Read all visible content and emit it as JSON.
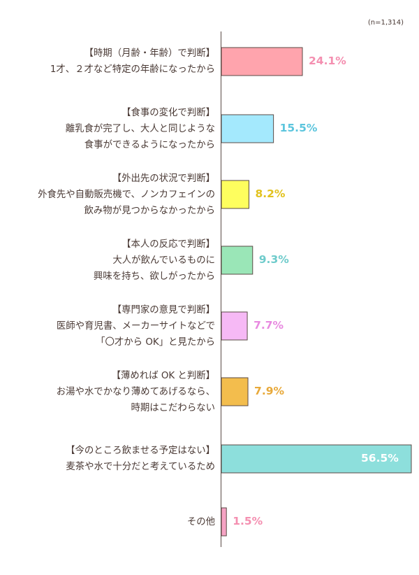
{
  "chart_data": {
    "type": "bar",
    "orientation": "horizontal",
    "sample_note": "(n=1,314)",
    "xlim": [
      0,
      56.5
    ],
    "categories": [
      {
        "heading": "【時期（月齢・年齢）で判断】",
        "lines": [
          "1才、２才など特定の年齢になったから"
        ],
        "value": 24.1,
        "label": "24.1%",
        "color": "#ffa4ad",
        "label_color": "#f48fb0"
      },
      {
        "heading": "【食事の変化で判断】",
        "lines": [
          "離乳食が完了し、大人と同じような",
          "食事ができるようになったから"
        ],
        "value": 15.5,
        "label": "15.5%",
        "color": "#a4e9fd",
        "label_color": "#5cc5dd"
      },
      {
        "heading": "【外出先の状況で判断】",
        "lines": [
          "外食先や自動販売機で、ノンカフェインの",
          "飲み物が見つからなかったから"
        ],
        "value": 8.2,
        "label": "8.2%",
        "color": "#fefe5e",
        "label_color": "#e2c21e"
      },
      {
        "heading": "【本人の反応で判断】",
        "lines": [
          "大人が飲んでいるものに",
          "興味を持ち、欲しがったから"
        ],
        "value": 9.3,
        "label": "9.3%",
        "color": "#9ae6b7",
        "label_color": "#6ecbcb"
      },
      {
        "heading": "【専門家の意見で判断】",
        "lines": [
          "医師や育児書、メーカーサイトなどで",
          "「〇才から OK」と見たから"
        ],
        "value": 7.7,
        "label": "7.7%",
        "color": "#f6b9f5",
        "label_color": "#e88ae0"
      },
      {
        "heading": "【薄めれば OK と判断】",
        "lines": [
          "お湯や水でかなり薄めてあげるなら、",
          "時期はこだわらない"
        ],
        "value": 7.9,
        "label": "7.9%",
        "color": "#f3bd4d",
        "label_color": "#e8a93a"
      },
      {
        "heading": "【今のところ飲ませる予定はない】",
        "lines": [
          "麦茶や水で十分だと考えているため"
        ],
        "value": 56.5,
        "label": "56.5%",
        "color": "#8ddfdc",
        "label_color": "#ffffff"
      },
      {
        "heading": "",
        "lines": [
          "その他"
        ],
        "value": 1.5,
        "label": "1.5%",
        "color": "#f6a3c4",
        "label_color": "#f48fb0"
      }
    ]
  }
}
